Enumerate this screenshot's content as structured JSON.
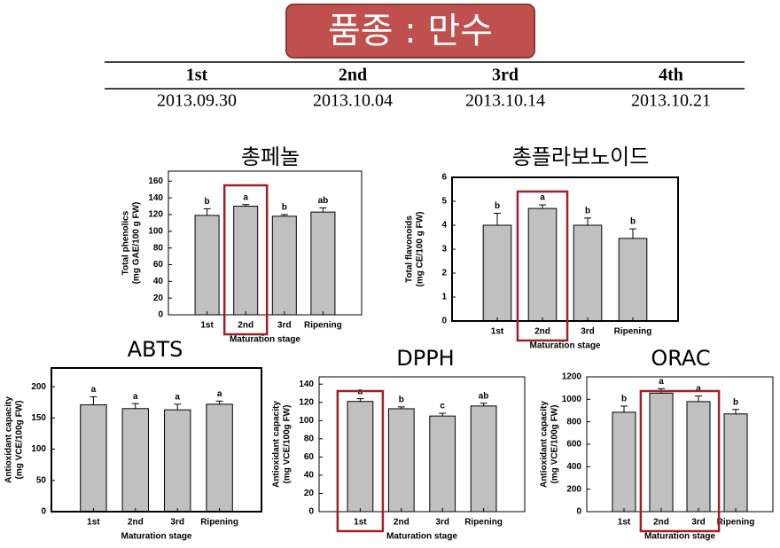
{
  "header": {
    "title": "품종 : 만수"
  },
  "table": {
    "rows": [
      [
        "1st",
        "2nd",
        "3rd",
        "4th"
      ],
      [
        "2013.09.30",
        "2013.10.04",
        "2013.10.14",
        "2013.10.21"
      ]
    ]
  },
  "chart_data": [
    {
      "type": "bar",
      "title": "총페놀",
      "ylabel": [
        "Total phenolics",
        "(mg GAE/100 g FW)"
      ],
      "xlabel": "Maturation stage",
      "categories": [
        "1st",
        "2nd",
        "3rd",
        "Ripening"
      ],
      "values": [
        119,
        130,
        118,
        123
      ],
      "errors": [
        8,
        2,
        2,
        5
      ],
      "letters": [
        "b",
        "a",
        "b",
        "ab"
      ],
      "color": "#c0c0c0",
      "highlight": [
        1,
        1
      ],
      "ylim": [
        0,
        172
      ],
      "yticks": [
        0,
        20,
        40,
        60,
        80,
        100,
        120,
        140,
        160
      ]
    },
    {
      "type": "bar",
      "title": "총플라보노이드",
      "ylabel": [
        "Total flavonoids",
        "(mg CE/100 g FW)"
      ],
      "xlabel": "Maturation stage",
      "categories": [
        "1st",
        "2nd",
        "3rd",
        "Ripening"
      ],
      "values": [
        4.0,
        4.7,
        4.0,
        3.45
      ],
      "errors": [
        0.5,
        0.15,
        0.3,
        0.4
      ],
      "letters": [
        "b",
        "a",
        "b",
        "b"
      ],
      "color": "#c0c0c0",
      "highlight": [
        1,
        1
      ],
      "ylim": [
        0,
        6
      ],
      "yticks": [
        0,
        1,
        2,
        3,
        4,
        5,
        6
      ]
    },
    {
      "type": "bar",
      "title": "ABTS",
      "ylabel": [
        "Antioxidant capacity",
        "(mg VCE/100g FW)"
      ],
      "xlabel": "Maturation stage",
      "categories": [
        "1st",
        "2nd",
        "3rd",
        "Ripening"
      ],
      "values": [
        171,
        165,
        163,
        172
      ],
      "errors": [
        13,
        8,
        9,
        5
      ],
      "letters": [
        "a",
        "a",
        "a",
        "a"
      ],
      "color": "#c0c0c0",
      "ylim": [
        0,
        230
      ],
      "yticks": [
        0,
        50,
        100,
        150,
        200
      ]
    },
    {
      "type": "bar",
      "title": "DPPH",
      "ylabel": [
        "Antioxidant capacity",
        "(mg VCE/100g FW)"
      ],
      "xlabel": "Maturation stage",
      "categories": [
        "1st",
        "2nd",
        "3rd",
        "Ripening"
      ],
      "values": [
        121,
        113,
        105,
        116
      ],
      "errors": [
        3,
        2,
        3,
        3
      ],
      "letters": [
        "a",
        "b",
        "c",
        "ab"
      ],
      "color": "#c0c0c0",
      "highlight": [
        0,
        0
      ],
      "ylim": [
        0,
        148
      ],
      "yticks": [
        0,
        20,
        40,
        60,
        80,
        100,
        120,
        140
      ]
    },
    {
      "type": "bar",
      "title": "ORAC",
      "ylabel": [
        "Antioxidant capacity",
        "(mg VCE/100g FW)"
      ],
      "xlabel": "Maturation stage",
      "categories": [
        "1st",
        "2nd",
        "3rd",
        "Ripening"
      ],
      "values": [
        885,
        1055,
        980,
        870
      ],
      "errors": [
        55,
        40,
        50,
        40
      ],
      "letters": [
        "b",
        "a",
        "a",
        "b"
      ],
      "color": "#c0c0c0",
      "highlight": [
        1,
        2
      ],
      "ylim": [
        0,
        1200
      ],
      "yticks": [
        0,
        200,
        400,
        600,
        800,
        1000,
        1200
      ]
    }
  ]
}
